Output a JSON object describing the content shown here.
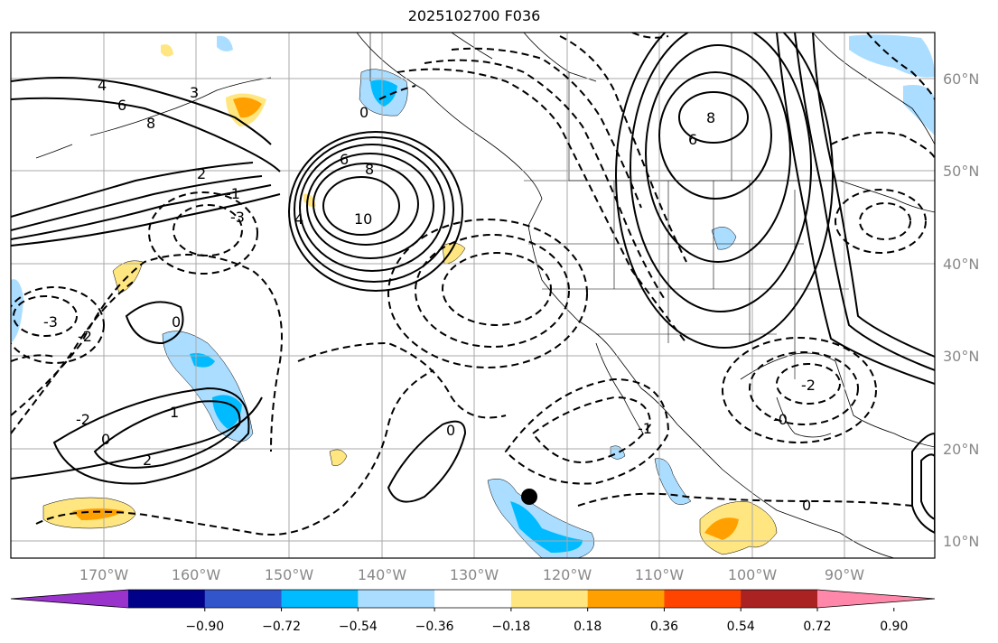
{
  "title": "2025102700 F036",
  "lat_labels": [
    "60°N",
    "50°N",
    "40°N",
    "30°N",
    "20°N",
    "10°N"
  ],
  "lon_labels": [
    "170°W",
    "160°W",
    "150°W",
    "140°W",
    "130°W",
    "120°W",
    "110°W",
    "100°W",
    "90°W"
  ],
  "colorbar": {
    "colors": [
      "#9933cc",
      "#000088",
      "#3355cc",
      "#00bbff",
      "#aaddff",
      "#ffffff",
      "#ffe680",
      "#ffa000",
      "#ff4400",
      "#aa2222",
      "#ff88aa"
    ],
    "tick_labels": [
      "−0.90",
      "−0.72",
      "−0.54",
      "−0.36",
      "−0.18",
      "0.18",
      "0.36",
      "0.54",
      "0.72",
      "0.90"
    ]
  },
  "contour_labels": [
    "6",
    "8",
    "10",
    "6",
    "8",
    "4",
    "3",
    "2",
    "-2",
    "-3",
    "-1",
    "0",
    "0",
    "0",
    "-2",
    "-0",
    "0",
    "1",
    "2",
    "0",
    "-3",
    "-2",
    "-1",
    "4",
    "6",
    "8"
  ]
}
